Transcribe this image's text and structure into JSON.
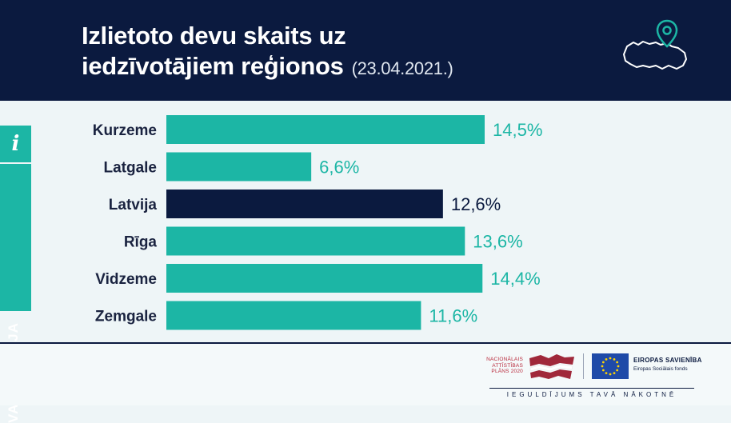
{
  "header": {
    "title_line1": "Izlietoto devu skaits uz",
    "title_line2": "iedzīvotājiem reģionos",
    "date": "(23.04.2021.)"
  },
  "side_tab": {
    "icon": "info-icon",
    "icon_glyph": "i",
    "label": "VAKCINĀCIJA"
  },
  "colors": {
    "header_bg": "#0b1a3f",
    "accent": "#1cb6a5",
    "highlight": "#0b1a3f",
    "value_teal": "#1cb6a5"
  },
  "chart_data": {
    "type": "bar",
    "orientation": "horizontal",
    "categories": [
      "Kurzeme",
      "Latgale",
      "Latvija",
      "Rīga",
      "Vidzeme",
      "Zemgale"
    ],
    "values": [
      14.5,
      6.6,
      12.6,
      13.6,
      14.4,
      11.6
    ],
    "value_labels": [
      "14,5%",
      "6,6%",
      "12,6%",
      "13,6%",
      "14,4%",
      "11,6%"
    ],
    "highlight_category": "Latvija",
    "xlim": [
      0,
      14.5
    ],
    "grid": false,
    "legend": "none"
  },
  "footer": {
    "nap_text": "NACIONĀLAIS ATTĪSTĪBAS PLĀNS 2020",
    "eu_title": "EIROPAS SAVIENĪBA",
    "eu_subtitle": "Eiropas Sociālais fonds",
    "tagline": "IEGULDĪJUMS TAVĀ NĀKOTNĒ"
  }
}
